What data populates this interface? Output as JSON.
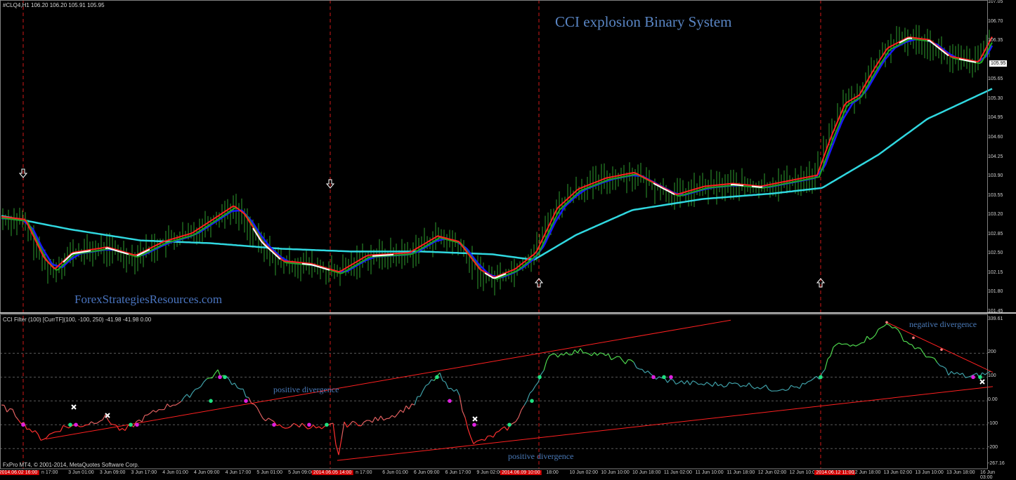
{
  "window": {
    "symbol_header": "#CLQ4,H1  106.20 106.20 105.91 105.95",
    "title": "CCI explosion Binary System",
    "watermark": "ForexStrategiesResources.com",
    "copyright": "FxPro MT4, © 2001-2014, MetaQuotes Software Corp."
  },
  "price_panel": {
    "current_price": "105.95",
    "ticks": [
      "107.05",
      "106.70",
      "106.35",
      "105.65",
      "105.30",
      "104.95",
      "104.60",
      "104.25",
      "103.90",
      "103.55",
      "103.20",
      "102.85",
      "102.50",
      "102.15",
      "101.80",
      "101.45"
    ],
    "ylim": [
      101.45,
      107.05
    ],
    "colors": {
      "candles": "#2e9b2e",
      "ma_fast": "#ff2020",
      "ma_mid": "#1fa51f",
      "ma_blue": "#1818ff",
      "ma_slow": "#30d8e0",
      "signal": "#ffffff"
    }
  },
  "indicator_panel": {
    "header": "CCI Filter (100) [CurrTF](100, -100, 250) -41.98 -41.98 0.00",
    "ticks": [
      "339.61",
      "200",
      "100",
      "0.00",
      "-100",
      "-200",
      "-267.16"
    ],
    "ylim": [
      -267.16,
      339.61
    ],
    "annotations": {
      "positive_divergence_1": "positive divergence",
      "positive_divergence_2": "positive divergence",
      "negative_divergence": "negative divergence"
    }
  },
  "time_axis": {
    "labels": [
      {
        "text": "2014.06.02 16:00",
        "highlight": true
      },
      {
        "text": "n 17:00",
        "highlight": false
      },
      {
        "text": "3 Jun 01:00",
        "highlight": false
      },
      {
        "text": "3 Jun 09:00",
        "highlight": false
      },
      {
        "text": "3 Jun 17:00",
        "highlight": false
      },
      {
        "text": "4 Jun 01:00",
        "highlight": false
      },
      {
        "text": "4 Jun 09:00",
        "highlight": false
      },
      {
        "text": "4 Jun 17:00",
        "highlight": false
      },
      {
        "text": "5 Jun 01:00",
        "highlight": false
      },
      {
        "text": "5 Jun 09:00",
        "highlight": false
      },
      {
        "text": "2014.06.05 14:00",
        "highlight": true
      },
      {
        "text": "n 17:00",
        "highlight": false
      },
      {
        "text": "6 Jun 01:00",
        "highlight": false
      },
      {
        "text": "6 Jun 09:00",
        "highlight": false
      },
      {
        "text": "6 Jun 17:00",
        "highlight": false
      },
      {
        "text": "9 Jun 02:00",
        "highlight": false
      },
      {
        "text": "2014.06.09 10:00",
        "highlight": true
      },
      {
        "text": "18:00",
        "highlight": false
      },
      {
        "text": "10 Jun 02:00",
        "highlight": false
      },
      {
        "text": "10 Jun 10:00",
        "highlight": false
      },
      {
        "text": "10 Jun 18:00",
        "highlight": false
      },
      {
        "text": "11 Jun 02:00",
        "highlight": false
      },
      {
        "text": "11 Jun 10:00",
        "highlight": false
      },
      {
        "text": "11 Jun 18:00",
        "highlight": false
      },
      {
        "text": "12 Jun 02:00",
        "highlight": false
      },
      {
        "text": "12 Jun 10:00",
        "highlight": false
      },
      {
        "text": "2014.06.12 11:00",
        "highlight": true
      },
      {
        "text": "12 Jun 18:00",
        "highlight": false
      },
      {
        "text": "13 Jun 02:00",
        "highlight": false
      },
      {
        "text": "13 Jun 10:00",
        "highlight": false
      },
      {
        "text": "13 Jun 18:00",
        "highlight": false
      },
      {
        "text": "16 Jun 03:00",
        "highlight": false
      }
    ]
  }
}
